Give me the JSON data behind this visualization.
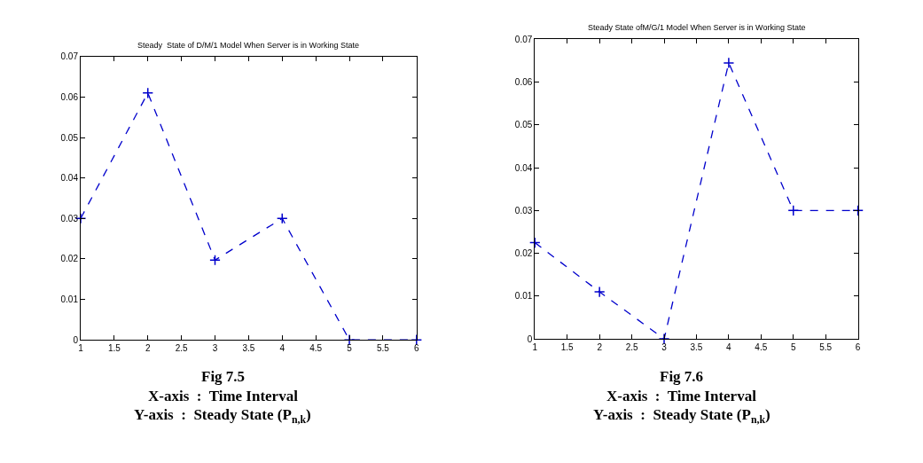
{
  "chart_data": [
    {
      "type": "line",
      "title": "Steady  State of D/M/1 Model When Server is in Working State",
      "x": [
        1,
        2,
        3,
        4,
        5,
        6
      ],
      "series": [
        {
          "color": "#0000cc",
          "values": [
            0.03,
            0.061,
            0.0197,
            0.03,
            0,
            0
          ]
        }
      ],
      "xlim": [
        1,
        6
      ],
      "xticks": [
        1,
        1.5,
        2,
        2.5,
        3,
        3.5,
        4,
        4.5,
        5,
        5.5,
        6
      ],
      "ylim": [
        0,
        0.07
      ],
      "yticks": [
        0,
        0.01,
        0.02,
        0.03,
        0.04,
        0.05,
        0.06,
        0.07
      ],
      "marker": "cross",
      "line_style": "dashed",
      "annotations": [
        "Fig 7.5",
        "X-axis  :  Time Interval",
        "Y-axis  :  Steady State (P$_{n,k}$)"
      ]
    },
    {
      "type": "line",
      "title": "Steady State ofM/G/1 Model When Server is in Working State",
      "x": [
        1,
        2,
        3,
        4,
        5,
        6
      ],
      "series": [
        {
          "color": "#0000cc",
          "values": [
            0.0225,
            0.011,
            0,
            0.0645,
            0.03,
            0.03
          ]
        }
      ],
      "xlim": [
        1,
        6
      ],
      "xticks": [
        1,
        1.5,
        2,
        2.5,
        3,
        3.5,
        4,
        4.5,
        5,
        5.5,
        6
      ],
      "ylim": [
        0,
        0.07
      ],
      "yticks": [
        0,
        0.01,
        0.02,
        0.03,
        0.04,
        0.05,
        0.06,
        0.07
      ],
      "marker": "cross",
      "line_style": "dashed",
      "annotations": [
        "Fig 7.6",
        "X-axis  :  Time Interval",
        "Y-axis  :  Steady State (P$_{n,k}$)"
      ]
    }
  ]
}
